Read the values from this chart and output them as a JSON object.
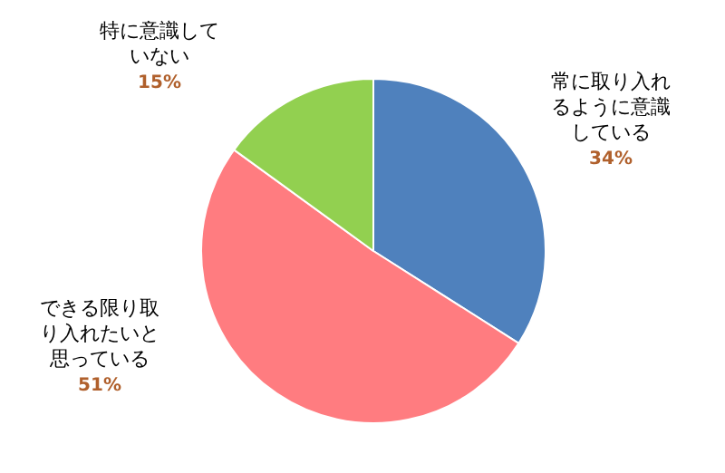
{
  "chart_data": {
    "type": "pie",
    "categories": [
      "常に取り入れるように意識している",
      "できる限り取り入れたいと思っている",
      "特に意識していない"
    ],
    "values": [
      34,
      51,
      15
    ],
    "colors": [
      "#4f81bd",
      "#ff7c80",
      "#92d050"
    ],
    "value_labels": [
      "34%",
      "51%",
      "15%"
    ],
    "legend": false
  }
}
